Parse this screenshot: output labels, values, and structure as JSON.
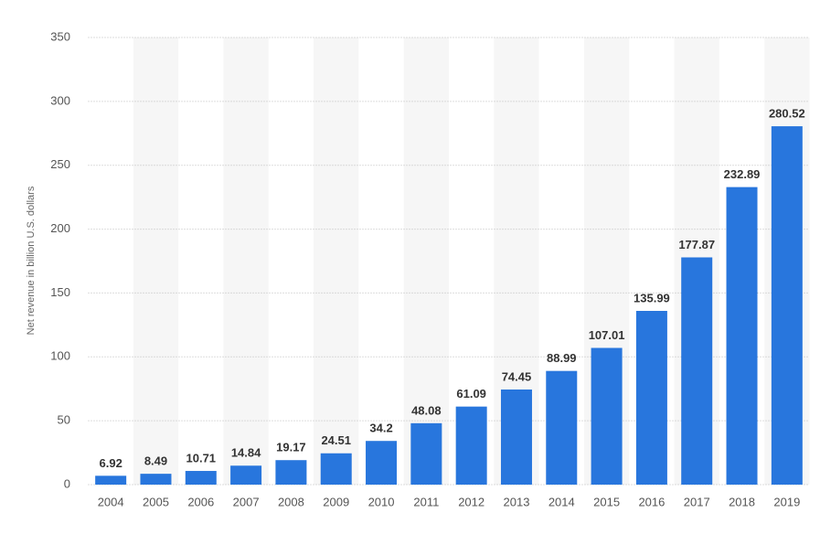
{
  "chart_data": {
    "type": "bar",
    "ylabel": "Net revenue in billion U.S. dollars",
    "categories": [
      "2004",
      "2005",
      "2006",
      "2007",
      "2008",
      "2009",
      "2010",
      "2011",
      "2012",
      "2013",
      "2014",
      "2015",
      "2016",
      "2017",
      "2018",
      "2019"
    ],
    "values": [
      6.92,
      8.49,
      10.71,
      14.84,
      19.17,
      24.51,
      34.2,
      48.08,
      61.09,
      74.45,
      88.99,
      107.01,
      135.99,
      177.87,
      232.89,
      280.52
    ],
    "color": "#2876dd",
    "ylim": [
      0,
      350
    ],
    "yticks": [
      0,
      50,
      100,
      150,
      200,
      250,
      300,
      350
    ],
    "grid": true
  }
}
